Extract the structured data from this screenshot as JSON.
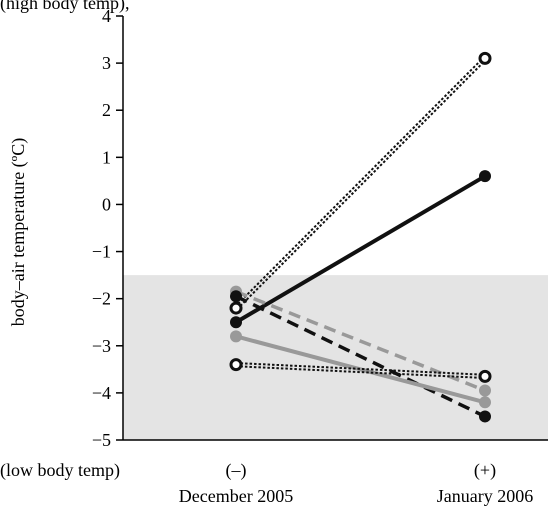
{
  "top_caption": "(high body temp),",
  "chart_data": {
    "type": "line",
    "ylabel": "body–air temperature (ºC)",
    "ylim": [
      -5,
      4
    ],
    "yticks": [
      4,
      3,
      2,
      1,
      0,
      -1,
      -2,
      -3,
      -4,
      -5
    ],
    "ytick_labels": [
      "4",
      "3",
      "2",
      "1",
      "0",
      "−1",
      "−2",
      "−3",
      "−4",
      "−5"
    ],
    "x_side_label": "(low body temp)",
    "categories": [
      {
        "sign": "(–)",
        "label": "December 2005"
      },
      {
        "sign": "(+)",
        "label": "January 2006"
      }
    ],
    "shaded_band": {
      "from": -5,
      "to": -1.5,
      "color": "#e4e4e4"
    },
    "series": [
      {
        "values": [
          -2.2,
          3.1
        ],
        "color": "#111111",
        "style": "dotted-double",
        "marker": "open"
      },
      {
        "values": [
          -2.5,
          0.6
        ],
        "color": "#111111",
        "style": "solid",
        "marker": "filled"
      },
      {
        "values": [
          -1.85,
          -3.95
        ],
        "color": "#999999",
        "style": "dashed",
        "marker": "filled"
      },
      {
        "values": [
          -1.95,
          -4.5
        ],
        "color": "#111111",
        "style": "dashed",
        "marker": "filled"
      },
      {
        "values": [
          -2.8,
          -4.2
        ],
        "color": "#999999",
        "style": "solid",
        "marker": "filled"
      },
      {
        "values": [
          -3.4,
          -3.65
        ],
        "color": "#111111",
        "style": "dotted-double",
        "marker": "open"
      }
    ]
  }
}
